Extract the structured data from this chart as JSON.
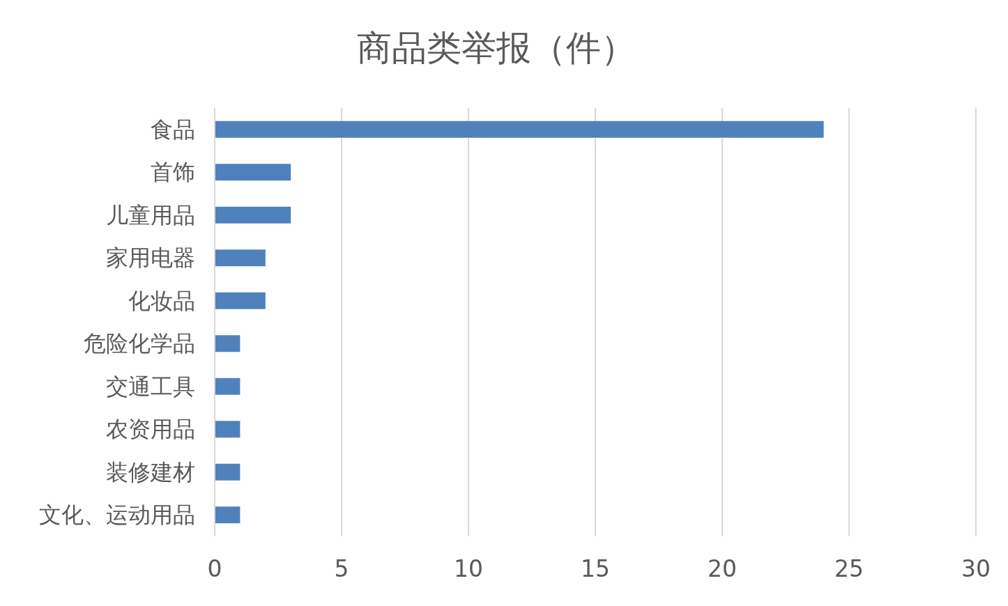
{
  "chart_data": {
    "type": "bar",
    "orientation": "horizontal",
    "title": "商品类举报（件）",
    "categories": [
      "食品",
      "首饰",
      "儿童用品",
      "家用电器",
      "化妆品",
      "危险化学品",
      "交通工具",
      "农资用品",
      "装修建材",
      "文化、运动用品"
    ],
    "values": [
      24,
      3,
      3,
      2,
      2,
      1,
      1,
      1,
      1,
      1
    ],
    "color": "#4f81bd",
    "xlim": [
      0,
      30
    ],
    "xticks": [
      0,
      5,
      10,
      15,
      20,
      25,
      30
    ],
    "grid": "x"
  }
}
